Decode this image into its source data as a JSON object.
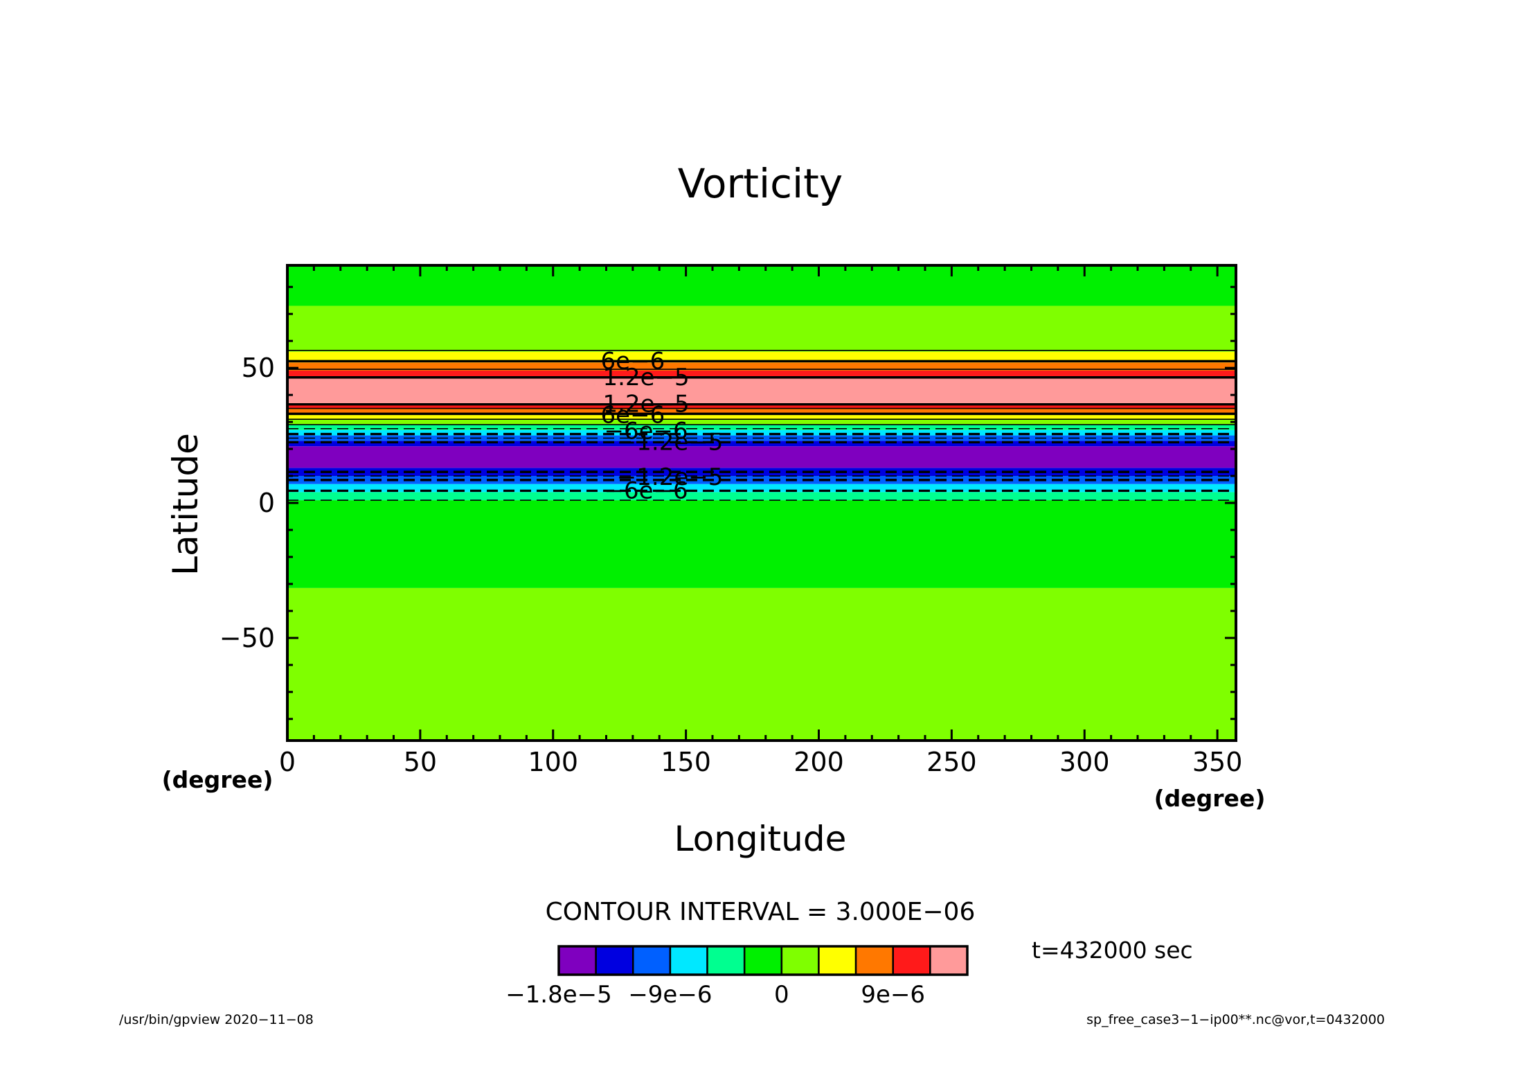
{
  "chart_data": {
    "type": "heatmap",
    "title": "Vorticity",
    "xlabel": "Longitude",
    "ylabel": "Latitude",
    "x_unit": "(degree)",
    "y_unit": "(degree)",
    "xlim": [
      0,
      357
    ],
    "ylim": [
      -88,
      88
    ],
    "x_ticks": [
      0,
      50,
      100,
      150,
      200,
      250,
      300,
      350
    ],
    "x_tick_labels": [
      "0",
      "50",
      "100",
      "150",
      "200",
      "250",
      "300",
      "350"
    ],
    "y_ticks": [
      -50,
      0,
      50
    ],
    "y_tick_labels": [
      "−50",
      "0",
      "50"
    ],
    "grid": false,
    "contour_interval_label": "CONTOUR INTERVAL = 3.000E−06",
    "time_label": "t=432000 sec",
    "bands": [
      {
        "lat_from": -88,
        "lat_to": -31.5,
        "class": 6
      },
      {
        "lat_from": -31.5,
        "lat_to": 1,
        "class": 5
      },
      {
        "lat_from": 1,
        "lat_to": 4,
        "class": 4
      },
      {
        "lat_from": 4,
        "lat_to": 7,
        "class": 3
      },
      {
        "lat_from": 7,
        "lat_to": 10,
        "class": 2
      },
      {
        "lat_from": 10,
        "lat_to": 13,
        "class": 1
      },
      {
        "lat_from": 13,
        "lat_to": 21,
        "class": 0
      },
      {
        "lat_from": 21,
        "lat_to": 23,
        "class": 1
      },
      {
        "lat_from": 23,
        "lat_to": 25,
        "class": 2
      },
      {
        "lat_from": 25,
        "lat_to": 27,
        "class": 3
      },
      {
        "lat_from": 27,
        "lat_to": 29,
        "class": 4
      },
      {
        "lat_from": 29,
        "lat_to": 31,
        "class": 6
      },
      {
        "lat_from": 31,
        "lat_to": 33,
        "class": 7
      },
      {
        "lat_from": 33,
        "lat_to": 35,
        "class": 8
      },
      {
        "lat_from": 35,
        "lat_to": 37,
        "class": 9
      },
      {
        "lat_from": 37,
        "lat_to": 46,
        "class": 10
      },
      {
        "lat_from": 46,
        "lat_to": 49,
        "class": 9
      },
      {
        "lat_from": 49,
        "lat_to": 52,
        "class": 8
      },
      {
        "lat_from": 52,
        "lat_to": 56,
        "class": 7
      },
      {
        "lat_from": 56,
        "lat_to": 73,
        "class": 6
      },
      {
        "lat_from": 73,
        "lat_to": 88,
        "class": 5
      }
    ],
    "contours": [
      {
        "lat": 56.5,
        "dashed": false,
        "bold": false
      },
      {
        "lat": 52.5,
        "dashed": false,
        "bold": true
      },
      {
        "lat": 49.5,
        "dashed": false,
        "bold": false
      },
      {
        "lat": 46.5,
        "dashed": false,
        "bold": true
      },
      {
        "lat": 36.5,
        "dashed": false,
        "bold": true
      },
      {
        "lat": 35,
        "dashed": false,
        "bold": false
      },
      {
        "lat": 33,
        "dashed": false,
        "bold": true
      },
      {
        "lat": 31,
        "dashed": false,
        "bold": false
      },
      {
        "lat": 29,
        "dashed": false,
        "bold": false
      },
      {
        "lat": 27.5,
        "dashed": true,
        "bold": false
      },
      {
        "lat": 25.5,
        "dashed": true,
        "bold": true
      },
      {
        "lat": 24,
        "dashed": true,
        "bold": false
      },
      {
        "lat": 22.5,
        "dashed": true,
        "bold": true
      },
      {
        "lat": 11.5,
        "dashed": true,
        "bold": true
      },
      {
        "lat": 10,
        "dashed": true,
        "bold": false
      },
      {
        "lat": 8.5,
        "dashed": true,
        "bold": true
      },
      {
        "lat": 4.5,
        "dashed": true,
        "bold": true
      },
      {
        "lat": 1,
        "dashed": true,
        "bold": false
      }
    ],
    "contour_labels": [
      {
        "text": "6e−6",
        "lon": 130,
        "lat": 52.5
      },
      {
        "text": "1.2e−5",
        "lon": 135,
        "lat": 46.5
      },
      {
        "text": "1.2e−5",
        "lon": 135,
        "lat": 36.5
      },
      {
        "text": "6e−6",
        "lon": 130,
        "lat": 32.5
      },
      {
        "text": "−6e−6",
        "lon": 135,
        "lat": 26.5
      },
      {
        "text": "−1.2e−5",
        "lon": 144,
        "lat": 22.5
      },
      {
        "text": "−1.2e−5",
        "lon": 144,
        "lat": 9.5
      },
      {
        "text": "−6e−6",
        "lon": 135,
        "lat": 4.5
      }
    ],
    "colorbar": {
      "min": -1.8e-05,
      "step": 3e-06,
      "colors": [
        "#7f00bf",
        "#0000e0",
        "#0060ff",
        "#00e8ff",
        "#00ff90",
        "#00f000",
        "#7fff00",
        "#ffff00",
        "#ff7800",
        "#ff1a1a",
        "#ff9a9a"
      ],
      "tick_labels": [
        {
          "text": "−1.8e−5",
          "boundary": 0
        },
        {
          "text": "−9e−6",
          "boundary": 3
        },
        {
          "text": "0",
          "boundary": 6
        },
        {
          "text": "9e−6",
          "boundary": 9
        }
      ]
    }
  },
  "footer": {
    "program": "/usr/bin/gpview   2020−11−08",
    "source": "sp_free_case3−1−ip00**.nc@vor,t=0432000"
  }
}
